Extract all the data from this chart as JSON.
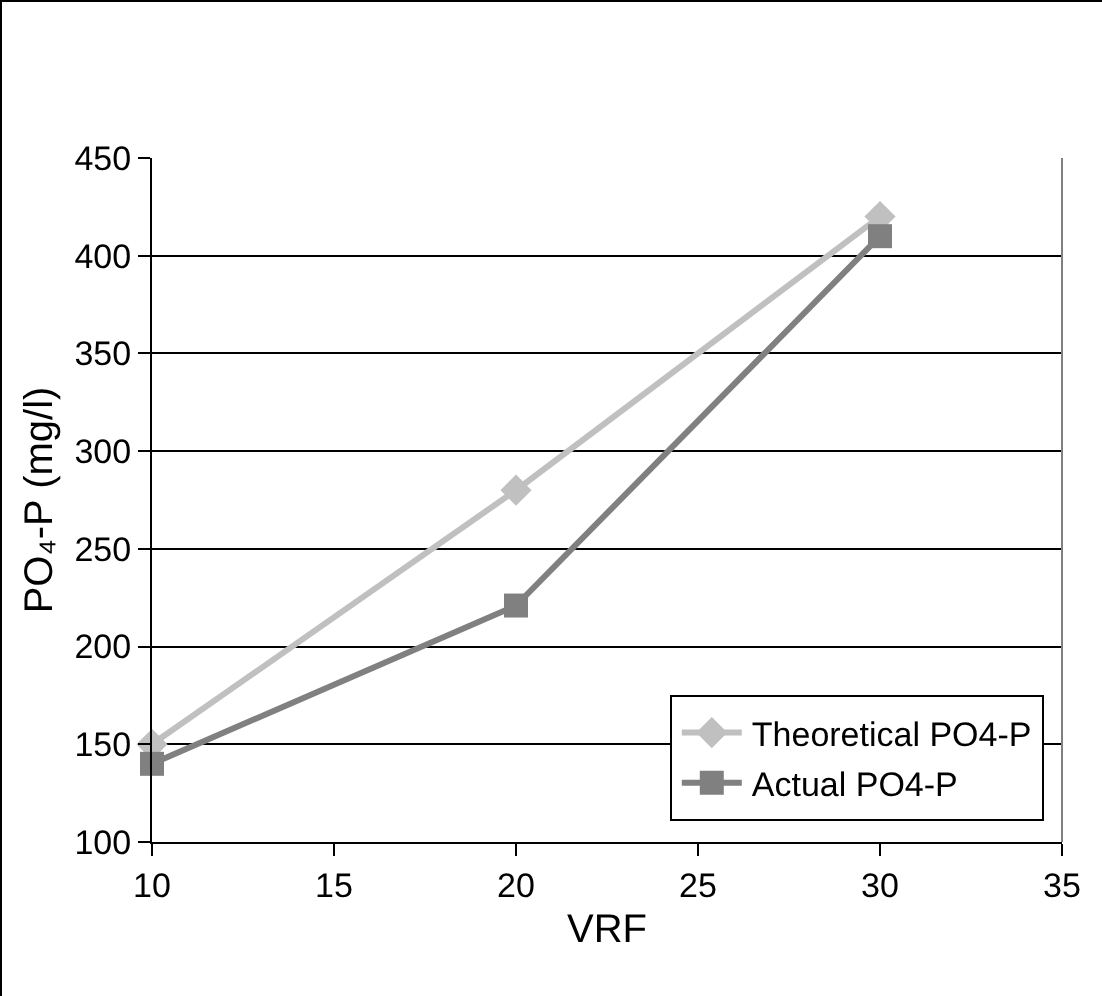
{
  "chart_data": {
    "type": "line",
    "xlabel": "VRF",
    "ylabel": "PO₄-P (mg/l)",
    "x": [
      10,
      20,
      30
    ],
    "series": [
      {
        "name": "Theoretical PO4-P",
        "color": "#c0c0c0",
        "marker": "diamond",
        "values": [
          150,
          280,
          420
        ]
      },
      {
        "name": "Actual PO4-P",
        "color": "#808080",
        "marker": "square",
        "values": [
          140,
          221,
          410
        ]
      }
    ],
    "xlim": [
      10,
      35
    ],
    "xticks": [
      10,
      15,
      20,
      25,
      30,
      35
    ],
    "ylim": [
      100,
      450
    ],
    "yticks": [
      100,
      150,
      200,
      250,
      300,
      350,
      400,
      450
    ],
    "grid": "y",
    "legend": "bottom right",
    "line_style": "solid"
  }
}
